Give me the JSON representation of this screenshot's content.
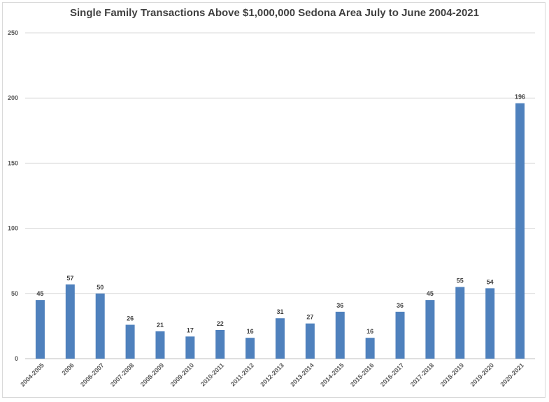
{
  "chart_data": {
    "type": "bar",
    "title": "Single Family Transactions Above $1,000,000 Sedona Area July to June 2004-2021",
    "xlabel": "",
    "ylabel": "",
    "categories": [
      "2004-2005",
      "2006",
      "2006-2007",
      "2007-2008",
      "2008-2009",
      "2009-2010",
      "2010-2011",
      "2011-2012",
      "2012-2013",
      "2013-2014",
      "2014-2015",
      "2015-2016",
      "2016-2017",
      "2017-2018",
      "2018-2019",
      "2019-2020",
      "2020-2021"
    ],
    "values": [
      45,
      57,
      50,
      26,
      21,
      17,
      22,
      16,
      31,
      27,
      36,
      16,
      36,
      45,
      55,
      54,
      196
    ],
    "ylim": [
      0,
      250
    ],
    "yticks": [
      0,
      50,
      100,
      150,
      200,
      250
    ],
    "grid": true,
    "legend": "none",
    "bar_color": "#4f81bd",
    "grid_color": "#d9d9d9"
  }
}
